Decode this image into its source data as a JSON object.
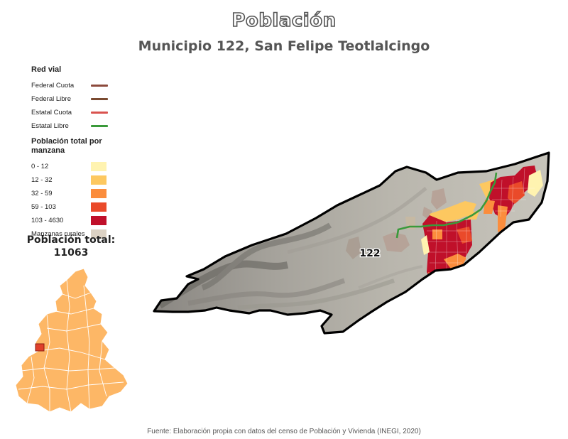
{
  "title": "Población",
  "subtitle": "Municipio 122, San Felipe Teotlalcingo",
  "legend": {
    "road_heading": "Red vial",
    "roads": [
      {
        "label": "Federal Cuota",
        "color": "#8c4a3c"
      },
      {
        "label": "Federal Libre",
        "color": "#7a4a30"
      },
      {
        "label": "Estatal Cuota",
        "color": "#d9534f"
      },
      {
        "label": "Estatal Libre",
        "color": "#3a9a3a"
      }
    ],
    "pop_heading": "Población total por manzana",
    "classes": [
      {
        "label": "0 - 12",
        "color": "#fff3b0"
      },
      {
        "label": "12 - 32",
        "color": "#fdc860"
      },
      {
        "label": "32 - 59",
        "color": "#fb8d3d"
      },
      {
        "label": "59 - 103",
        "color": "#ea4a2a"
      },
      {
        "label": "103 - 4630",
        "color": "#c0102a"
      },
      {
        "label": "Manzanas rurales",
        "color": "#dcd2c4"
      }
    ]
  },
  "total": {
    "label": "Población total:",
    "value": "11063"
  },
  "map": {
    "municipality_label": "122",
    "colors": {
      "terrain": "#b7b4ab",
      "terrain_dark": "#7d7b76",
      "outline": "#000000",
      "locator_fill": "#fdb766",
      "locator_highlight": "#e0402a"
    }
  },
  "source": "Fuente: Elaboración propia con datos del censo de Población y Vivienda (INEGI, 2020)"
}
